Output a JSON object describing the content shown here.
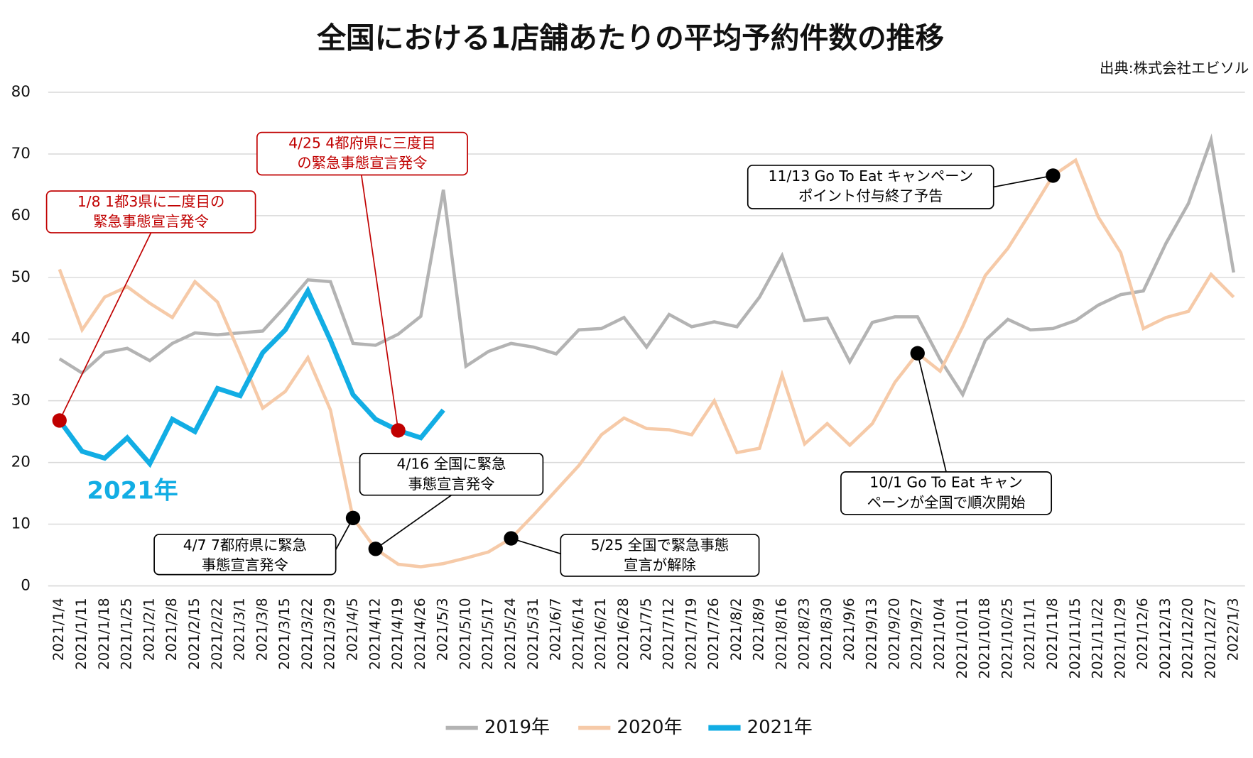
{
  "chart_data": {
    "type": "line",
    "title": "全国における1店舗あたりの平均予約件数の推移",
    "subtitle": "出典:株式会社エビソル",
    "categories": [
      "2021/1/4",
      "2021/1/11",
      "2021/1/18",
      "2021/1/25",
      "2021/2/1",
      "2021/2/8",
      "2021/2/15",
      "2021/2/22",
      "2021/3/1",
      "2021/3/8",
      "2021/3/15",
      "2021/3/22",
      "2021/3/29",
      "2021/4/5",
      "2021/4/12",
      "2021/4/19",
      "2021/4/26",
      "2021/5/3",
      "2021/5/10",
      "2021/5/17",
      "2021/5/24",
      "2021/5/31",
      "2021/6/7",
      "2021/6/14",
      "2021/6/21",
      "2021/6/28",
      "2021/7/5",
      "2021/7/12",
      "2021/7/19",
      "2021/7/26",
      "2021/8/2",
      "2021/8/9",
      "2021/8/16",
      "2021/8/23",
      "2021/8/30",
      "2021/9/6",
      "2021/9/13",
      "2021/9/20",
      "2021/9/27",
      "2021/10/4",
      "2021/10/11",
      "2021/10/18",
      "2021/10/25",
      "2021/11/1",
      "2021/11/8",
      "2021/11/15",
      "2021/11/22",
      "2021/11/29",
      "2021/12/6",
      "2021/12/13",
      "2021/12/20",
      "2021/12/27",
      "2022/1/3"
    ],
    "series": [
      {
        "name": "2019年",
        "color": "#b3b3b3",
        "values": [
          36.8,
          34.5,
          37.8,
          38.5,
          36.5,
          39.3,
          41,
          40.7,
          41,
          41.3,
          45.3,
          49.6,
          49.3,
          39.3,
          39,
          40.8,
          43.7,
          64.2,
          35.6,
          38,
          39.3,
          38.7,
          37.6,
          41.5,
          41.7,
          43.5,
          38.7,
          44,
          42,
          42.8,
          42,
          46.8,
          53.5,
          43,
          43.4,
          36.3,
          42.7,
          43.6,
          43.6,
          36.7,
          31,
          39.8,
          43.2,
          41.5,
          41.7,
          43,
          45.5,
          47.2,
          47.8,
          55.5,
          62,
          72.3,
          50.8
        ]
      },
      {
        "name": "2020年",
        "color": "#f6caa8",
        "values": [
          51.3,
          41.5,
          46.8,
          48.5,
          45.8,
          43.5,
          49.3,
          46,
          37.5,
          28.8,
          31.5,
          37,
          28.5,
          11,
          6,
          3.5,
          3.1,
          3.6,
          4.5,
          5.5,
          7.7,
          11.5,
          15.5,
          19.5,
          24.5,
          27.2,
          25.5,
          25.3,
          24.5,
          30,
          21.6,
          22.3,
          34.2,
          23,
          26.3,
          22.8,
          26.3,
          33,
          37.7,
          34.8,
          42,
          50.3,
          54.7,
          60.5,
          66.5,
          69,
          59.8,
          54,
          41.7,
          43.5,
          44.5,
          50.5,
          46.8
        ]
      },
      {
        "name": "2021年",
        "color": "#12ade4",
        "values": [
          26.8,
          21.8,
          20.7,
          24,
          19.8,
          27,
          25,
          32,
          30.8,
          37.8,
          41.5,
          47.8,
          39.8,
          31,
          27,
          25.2,
          24,
          28.5,
          null,
          null,
          null,
          null,
          null,
          null,
          null,
          null,
          null,
          null,
          null,
          null,
          null,
          null,
          null,
          null,
          null,
          null,
          null,
          null,
          null,
          null,
          null,
          null,
          null,
          null,
          null,
          null,
          null,
          null,
          null,
          null,
          null,
          null,
          null
        ]
      }
    ],
    "inline_label": "2021年",
    "ylim": [
      0,
      80
    ],
    "yticks": [
      0,
      10,
      20,
      30,
      40,
      50,
      60,
      70,
      80
    ],
    "grid": true,
    "legend": "bottom",
    "annotations": [
      {
        "lines": [
          "1/8  1都3県に二度目の",
          "緊急事態宣言発令"
        ],
        "x": "2021/1/4",
        "series": "2021年",
        "color": "#c00000"
      },
      {
        "lines": [
          "4/25  4都府県に三度目",
          "の緊急事態宣言発令"
        ],
        "x": "2021/4/19",
        "series": "2021年",
        "color": "#c00000"
      },
      {
        "lines": [
          "4/16  全国に緊急",
          "事態宣言発令"
        ],
        "x": "2021/4/12",
        "series": "2020年",
        "color": "#000000"
      },
      {
        "lines": [
          "4/7  7都府県に緊急",
          "事態宣言発令"
        ],
        "x": "2021/4/5",
        "series": "2020年",
        "color": "#000000"
      },
      {
        "lines": [
          "5/25  全国で緊急事態",
          "宣言が解除"
        ],
        "x": "2021/5/24",
        "series": "2020年",
        "color": "#000000"
      },
      {
        "lines": [
          "10/1  Go To Eat キャン",
          "ペーンが全国で順次開始"
        ],
        "x": "2021/9/27",
        "series": "2020年",
        "color": "#000000"
      },
      {
        "lines": [
          "11/13  Go To Eat キャンペーン",
          "ポイント付与終了予告"
        ],
        "x": "2021/11/8",
        "series": "2020年",
        "color": "#000000"
      }
    ]
  }
}
